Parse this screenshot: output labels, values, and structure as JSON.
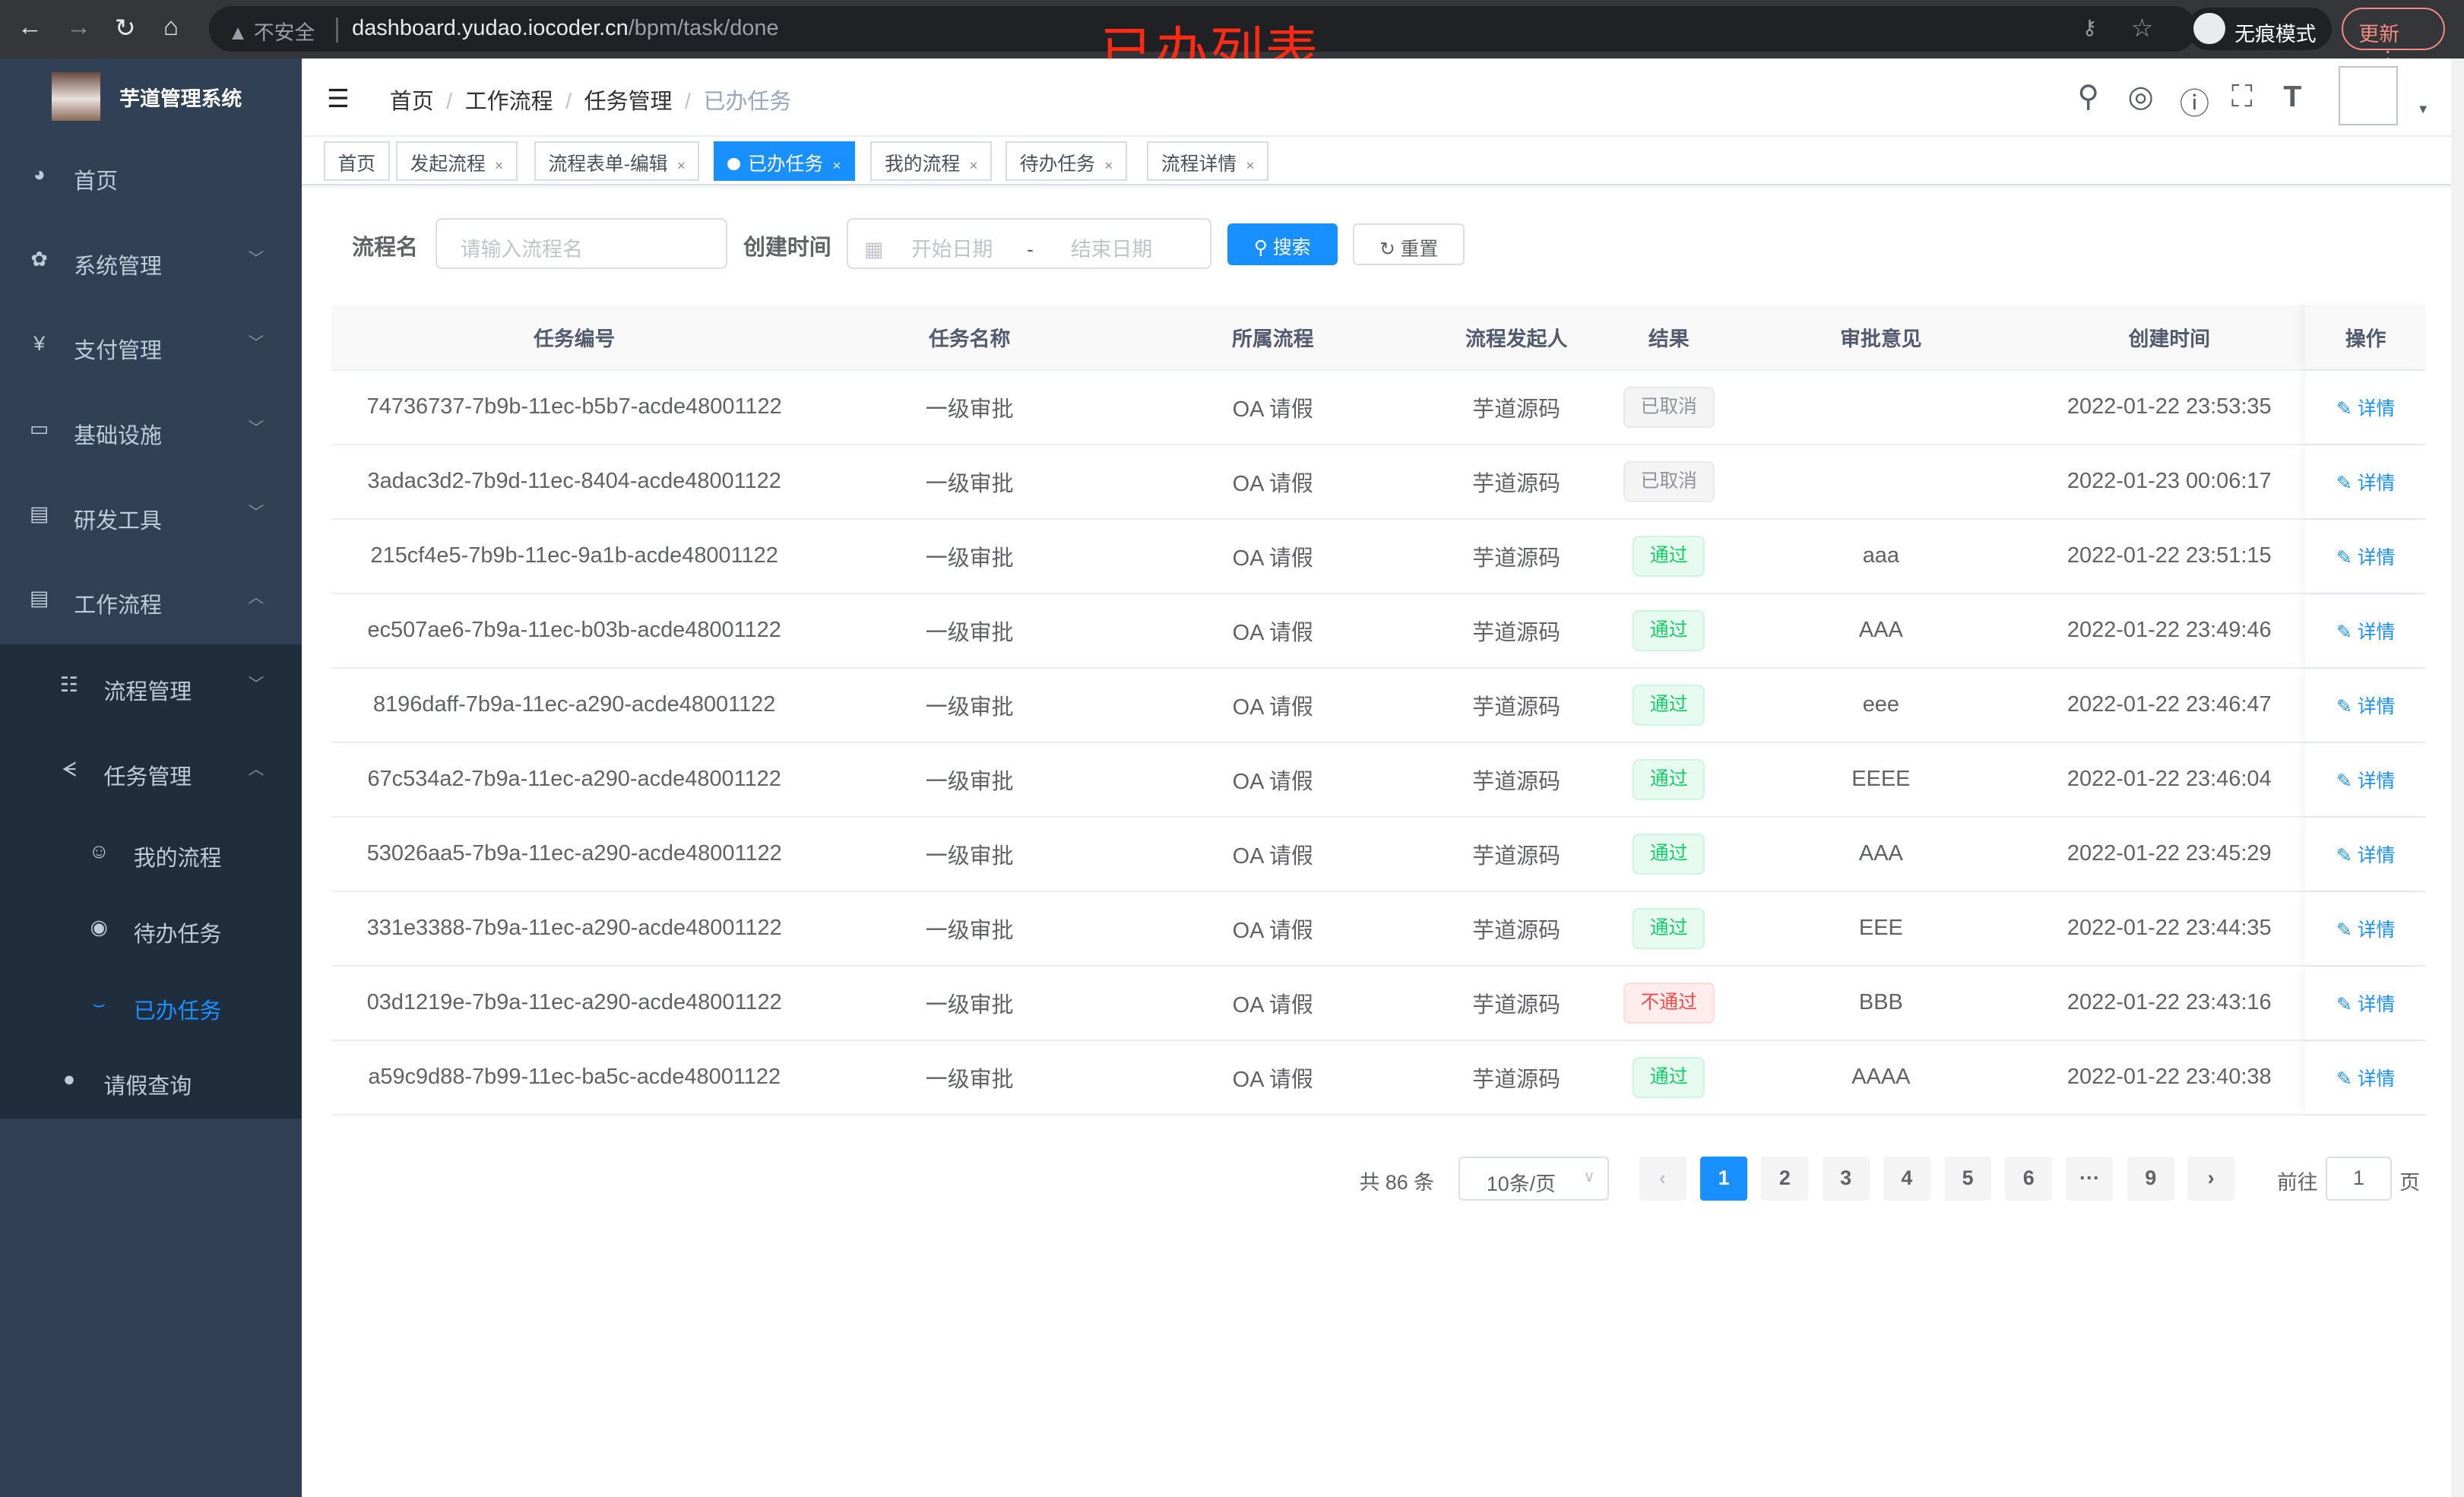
{
  "browser": {
    "security": "不安全",
    "url_host": "dashboard.yudao.iocoder.cn",
    "url_path": "/bpm/task/done",
    "incognito": "无痕模式",
    "update": "更新",
    "annotation": "已办列表"
  },
  "app": {
    "title": "芋道管理系统"
  },
  "sidebar": {
    "items": [
      {
        "label": "首页",
        "icon": "dashboard-icon"
      },
      {
        "label": "系统管理",
        "icon": "gear-icon"
      },
      {
        "label": "支付管理",
        "icon": "yen-icon"
      },
      {
        "label": "基础设施",
        "icon": "monitor-icon"
      },
      {
        "label": "研发工具",
        "icon": "toolbox-icon"
      },
      {
        "label": "工作流程",
        "icon": "toolbox-icon"
      }
    ],
    "sub": [
      {
        "label": "流程管理",
        "icon": "list-icon"
      },
      {
        "label": "任务管理",
        "icon": "tree-icon"
      }
    ],
    "task_sub": [
      {
        "label": "我的流程",
        "icon": "robot-icon"
      },
      {
        "label": "待办任务",
        "icon": "eye-icon"
      },
      {
        "label": "已办任务",
        "icon": "eye-closed-icon"
      }
    ],
    "leave": {
      "label": "请假查询",
      "icon": "user-icon"
    },
    "active_color": "#1890ff"
  },
  "breadcrumb": [
    "首页",
    "工作流程",
    "任务管理",
    "已办任务"
  ],
  "tags": [
    {
      "label": "首页",
      "closable": false
    },
    {
      "label": "发起流程"
    },
    {
      "label": "流程表单-编辑"
    },
    {
      "label": "已办任务",
      "active": true
    },
    {
      "label": "我的流程"
    },
    {
      "label": "待办任务"
    },
    {
      "label": "流程详情"
    }
  ],
  "filter": {
    "name_label": "流程名",
    "name_placeholder": "请输入流程名",
    "time_label": "创建时间",
    "start_placeholder": "开始日期",
    "range_sep": "-",
    "end_placeholder": "结束日期",
    "search": "搜索",
    "reset": "重置"
  },
  "table": {
    "columns": [
      "任务编号",
      "任务名称",
      "所属流程",
      "流程发起人",
      "结果",
      "审批意见",
      "创建时间",
      "操作"
    ],
    "rows": [
      {
        "id": "74736737-7b9b-11ec-b5b7-acde48001122",
        "name": "一级审批",
        "process": "OA 请假",
        "starter": "芋道源码",
        "result": "已取消",
        "status": "cancel",
        "comment": "",
        "time": "2022-01-22 23:53:35"
      },
      {
        "id": "3adac3d2-7b9d-11ec-8404-acde48001122",
        "name": "一级审批",
        "process": "OA 请假",
        "starter": "芋道源码",
        "result": "已取消",
        "status": "cancel",
        "comment": "",
        "time": "2022-01-23 00:06:17"
      },
      {
        "id": "215cf4e5-7b9b-11ec-9a1b-acde48001122",
        "name": "一级审批",
        "process": "OA 请假",
        "starter": "芋道源码",
        "result": "通过",
        "status": "pass",
        "comment": "aaa",
        "time": "2022-01-22 23:51:15"
      },
      {
        "id": "ec507ae6-7b9a-11ec-b03b-acde48001122",
        "name": "一级审批",
        "process": "OA 请假",
        "starter": "芋道源码",
        "result": "通过",
        "status": "pass",
        "comment": "AAA",
        "time": "2022-01-22 23:49:46"
      },
      {
        "id": "8196daff-7b9a-11ec-a290-acde48001122",
        "name": "一级审批",
        "process": "OA 请假",
        "starter": "芋道源码",
        "result": "通过",
        "status": "pass",
        "comment": "eee",
        "time": "2022-01-22 23:46:47"
      },
      {
        "id": "67c534a2-7b9a-11ec-a290-acde48001122",
        "name": "一级审批",
        "process": "OA 请假",
        "starter": "芋道源码",
        "result": "通过",
        "status": "pass",
        "comment": "EEEE",
        "time": "2022-01-22 23:46:04"
      },
      {
        "id": "53026aa5-7b9a-11ec-a290-acde48001122",
        "name": "一级审批",
        "process": "OA 请假",
        "starter": "芋道源码",
        "result": "通过",
        "status": "pass",
        "comment": "AAA",
        "time": "2022-01-22 23:45:29"
      },
      {
        "id": "331e3388-7b9a-11ec-a290-acde48001122",
        "name": "一级审批",
        "process": "OA 请假",
        "starter": "芋道源码",
        "result": "通过",
        "status": "pass",
        "comment": "EEE",
        "time": "2022-01-22 23:44:35"
      },
      {
        "id": "03d1219e-7b9a-11ec-a290-acde48001122",
        "name": "一级审批",
        "process": "OA 请假",
        "starter": "芋道源码",
        "result": "不通过",
        "status": "fail",
        "comment": "BBB",
        "time": "2022-01-22 23:43:16"
      },
      {
        "id": "a59c9d88-7b99-11ec-ba5c-acde48001122",
        "name": "一级审批",
        "process": "OA 请假",
        "starter": "芋道源码",
        "result": "通过",
        "status": "pass",
        "comment": "AAAA",
        "time": "2022-01-22 23:40:38"
      }
    ],
    "action": "详情"
  },
  "pagination": {
    "total": "共 86 条",
    "page_size": "10条/页",
    "pages": [
      "1",
      "2",
      "3",
      "4",
      "5",
      "6",
      "···",
      "9"
    ],
    "current": "1",
    "goto_label": "前往",
    "goto_value": "1",
    "goto_suffix": "页"
  }
}
